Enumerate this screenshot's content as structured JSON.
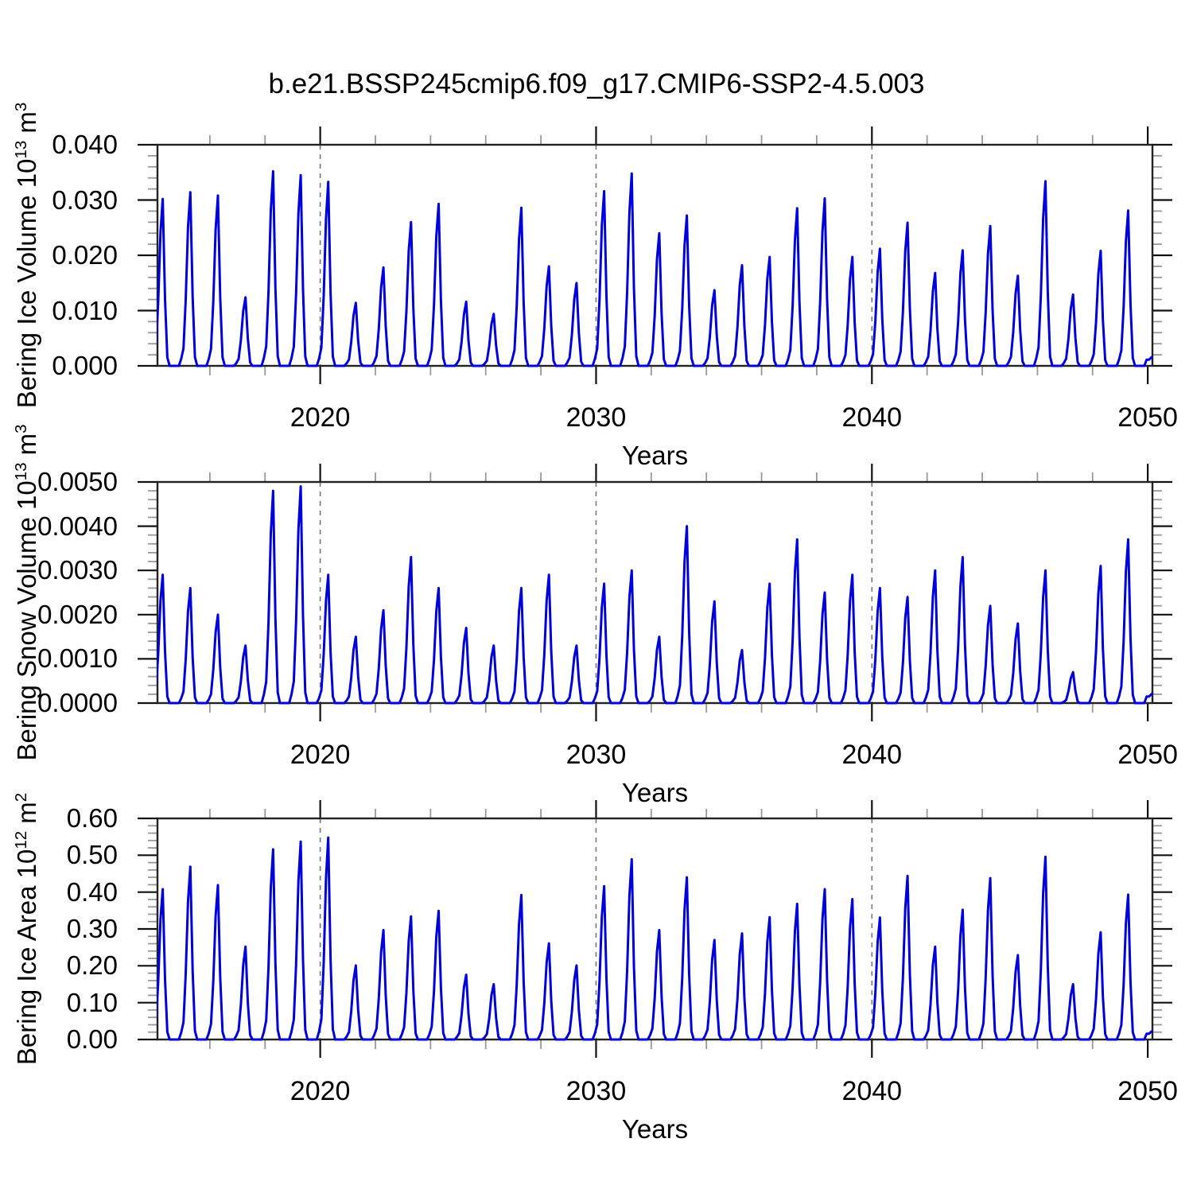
{
  "title": "b.e21.BSSP245cmip6.f09_g17.CMIP6-SSP2-4.5.003",
  "background_color": "#FFFFFF",
  "line_color": "#0000DD",
  "axis_color": "#222222",
  "gridline_color": "#777777",
  "chart_data": [
    {
      "type": "line",
      "series_name": "Bering Ice Volume",
      "ylabel": {
        "base": "Bering Ice Volume 10",
        "base_exp": "13",
        "unit": " m",
        "unit_exp": "3"
      },
      "unit": "10^13 m^3",
      "x_axis": {
        "label": "Years",
        "min": 2014.1,
        "max": 2050.17,
        "labeled_ticks": [
          "2020",
          "2030",
          "2040",
          "2050"
        ],
        "minor_tick_step_years": 2,
        "dashed_gridlines_at": [
          2020,
          2030,
          2040
        ]
      },
      "y_axis": {
        "min": 0,
        "max": 0.04,
        "major_tick_step": 0.01,
        "minor_tick_step": 0.002,
        "tick_labels": [
          "0.000",
          "0.010",
          "0.020",
          "0.030",
          "0.040"
        ]
      },
      "annual_peaks": {
        "years": [
          2014,
          2015,
          2016,
          2017,
          2018,
          2019,
          2020,
          2021,
          2022,
          2023,
          2024,
          2025,
          2026,
          2027,
          2028,
          2029,
          2030,
          2031,
          2032,
          2033,
          2034,
          2035,
          2036,
          2037,
          2038,
          2039,
          2040,
          2041,
          2042,
          2043,
          2044,
          2045,
          2046,
          2047,
          2048,
          2049
        ],
        "values": [
          0.0302,
          0.0314,
          0.0308,
          0.0124,
          0.0352,
          0.0345,
          0.0333,
          0.0114,
          0.0178,
          0.026,
          0.0293,
          0.0116,
          0.0094,
          0.0286,
          0.018,
          0.015,
          0.0316,
          0.0348,
          0.024,
          0.0272,
          0.0137,
          0.0182,
          0.0197,
          0.0285,
          0.0303,
          0.0197,
          0.0212,
          0.0259,
          0.0168,
          0.0209,
          0.0253,
          0.0163,
          0.0334,
          0.0129,
          0.0208,
          0.0281
        ]
      },
      "monthly_fraction_of_annual_peak": [
        0.1,
        0.38,
        0.8,
        1.0,
        0.4,
        0.05,
        0,
        0,
        0,
        0,
        0,
        0.04
      ]
    },
    {
      "type": "line",
      "series_name": "Bering Snow Volume",
      "ylabel": {
        "base": "Bering Snow Volume 10",
        "base_exp": "13",
        "unit": " m",
        "unit_exp": "3"
      },
      "unit": "10^13 m^3",
      "x_axis": {
        "label": "Years",
        "min": 2014.1,
        "max": 2050.17,
        "labeled_ticks": [
          "2020",
          "2030",
          "2040",
          "2050"
        ],
        "minor_tick_step_years": 2,
        "dashed_gridlines_at": [
          2020,
          2030,
          2040
        ]
      },
      "y_axis": {
        "min": 0,
        "max": 0.005,
        "major_tick_step": 0.001,
        "minor_tick_step": 0.0002,
        "tick_labels": [
          "0.0000",
          "0.0010",
          "0.0020",
          "0.0030",
          "0.0040",
          "0.0050"
        ]
      },
      "annual_peaks": {
        "years": [
          2014,
          2015,
          2016,
          2017,
          2018,
          2019,
          2020,
          2021,
          2022,
          2023,
          2024,
          2025,
          2026,
          2027,
          2028,
          2029,
          2030,
          2031,
          2032,
          2033,
          2034,
          2035,
          2036,
          2037,
          2038,
          2039,
          2040,
          2041,
          2042,
          2043,
          2044,
          2045,
          2046,
          2047,
          2048,
          2049
        ],
        "values": [
          0.0029,
          0.0026,
          0.002,
          0.0013,
          0.0048,
          0.0049,
          0.0029,
          0.0015,
          0.0021,
          0.0033,
          0.0026,
          0.0017,
          0.0013,
          0.0026,
          0.0029,
          0.0013,
          0.0027,
          0.003,
          0.0015,
          0.004,
          0.0023,
          0.0012,
          0.0027,
          0.0037,
          0.0025,
          0.0029,
          0.0026,
          0.0024,
          0.003,
          0.0033,
          0.0022,
          0.0018,
          0.003,
          0.0007,
          0.0031,
          0.0037
        ]
      },
      "monthly_fraction_of_annual_peak": [
        0.1,
        0.38,
        0.8,
        1.0,
        0.4,
        0.05,
        0,
        0,
        0,
        0,
        0,
        0.04
      ]
    },
    {
      "type": "line",
      "series_name": "Bering Ice Area",
      "ylabel": {
        "base": "Bering Ice Area 10",
        "base_exp": "12",
        "unit": " m",
        "unit_exp": "2"
      },
      "unit": "10^12 m^2",
      "x_axis": {
        "label": "Years",
        "min": 2014.1,
        "max": 2050.17,
        "labeled_ticks": [
          "2020",
          "2030",
          "2040",
          "2050"
        ],
        "minor_tick_step_years": 2,
        "dashed_gridlines_at": [
          2020,
          2030,
          2040
        ]
      },
      "y_axis": {
        "min": 0,
        "max": 0.6,
        "major_tick_step": 0.1,
        "minor_tick_step": 0.02,
        "tick_labels": [
          "0.00",
          "0.10",
          "0.20",
          "0.30",
          "0.40",
          "0.50",
          "0.60"
        ]
      },
      "annual_peaks": {
        "years": [
          2014,
          2015,
          2016,
          2017,
          2018,
          2019,
          2020,
          2021,
          2022,
          2023,
          2024,
          2025,
          2026,
          2027,
          2028,
          2029,
          2030,
          2031,
          2032,
          2033,
          2034,
          2035,
          2036,
          2037,
          2038,
          2039,
          2040,
          2041,
          2042,
          2043,
          2044,
          2045,
          2046,
          2047,
          2048,
          2049
        ],
        "values": [
          0.408,
          0.469,
          0.419,
          0.252,
          0.516,
          0.537,
          0.548,
          0.201,
          0.297,
          0.334,
          0.349,
          0.176,
          0.15,
          0.392,
          0.261,
          0.201,
          0.416,
          0.489,
          0.297,
          0.44,
          0.27,
          0.288,
          0.332,
          0.368,
          0.408,
          0.381,
          0.331,
          0.444,
          0.252,
          0.352,
          0.438,
          0.229,
          0.496,
          0.15,
          0.291,
          0.393
        ]
      },
      "monthly_fraction_of_annual_peak": [
        0.1,
        0.38,
        0.8,
        1.0,
        0.4,
        0.05,
        0,
        0,
        0,
        0,
        0,
        0.04
      ]
    }
  ]
}
